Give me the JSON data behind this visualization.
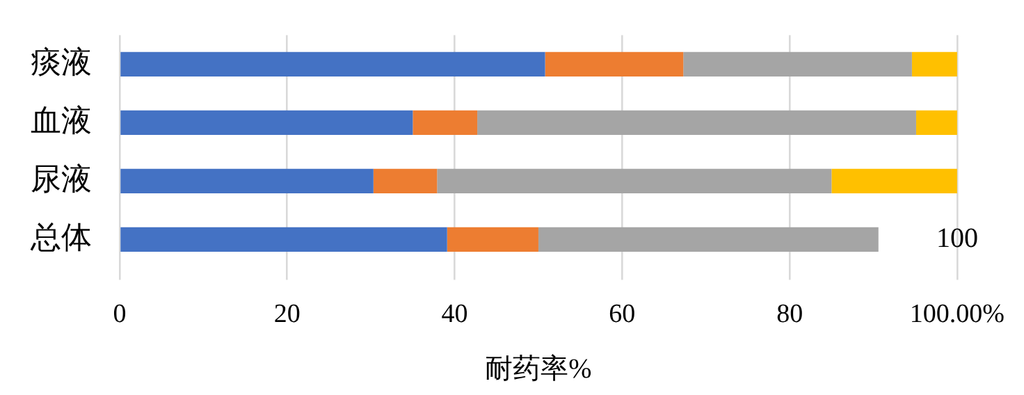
{
  "chart_data": {
    "type": "bar",
    "orientation": "horizontal",
    "stacked": true,
    "xlabel": "耐药率%",
    "categories": [
      "痰液",
      "血液",
      "尿液",
      "总体"
    ],
    "series": [
      {
        "color": "#4472c4",
        "values": [
          50.8,
          35.0,
          30.3,
          39.1
        ]
      },
      {
        "color": "#ed7d31",
        "values": [
          16.5,
          7.7,
          7.6,
          10.9
        ]
      },
      {
        "color": "#a5a5a5",
        "values": [
          27.3,
          52.4,
          47.1,
          40.6
        ]
      },
      {
        "color": "#ffc000",
        "values": [
          5.4,
          4.9,
          15.0,
          null
        ]
      }
    ],
    "xlim": [
      0,
      100
    ],
    "xticks": [
      0,
      20,
      40,
      60,
      80,
      {
        "value": 100,
        "label": "100.00%"
      }
    ],
    "grid": "x",
    "legend": false,
    "annotations": [
      "100"
    ]
  }
}
